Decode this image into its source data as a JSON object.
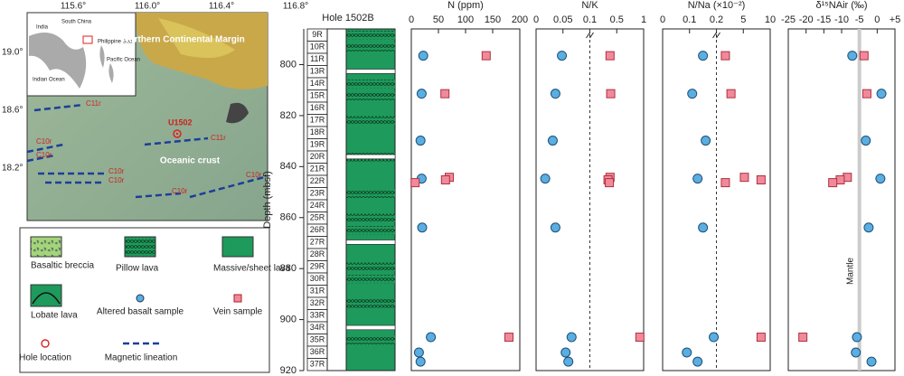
{
  "map": {
    "lon_ticks": [
      "115.6°",
      "116.0°",
      "116.4°",
      "116.8°"
    ],
    "lat_ticks": [
      "19.0°",
      "18.6°",
      "18.2°"
    ],
    "margin_label": "Northern Continental Margin",
    "crust_label": "Oceanic crust",
    "site": "U1502",
    "lineations": [
      "C11r",
      "C11r",
      "C10r",
      "C10r",
      "C10r",
      "C10r",
      "C10r",
      "C10r"
    ],
    "inset_labels": [
      "India",
      "South China",
      "Philippine Sea",
      "Pacific Ocean",
      "Indian Ocean"
    ]
  },
  "legend": [
    "Basaltic breccia",
    "Pillow lava",
    "Massive/sheet lava",
    "Lobate lava",
    "Hole location",
    "Magnetic lineation"
  ],
  "core_log": {
    "title": "Hole 1502B",
    "cores": [
      "9R",
      "10R",
      "11R",
      "13R",
      "14R",
      "15R",
      "16R",
      "17R",
      "18R",
      "19R",
      "20R",
      "21R",
      "22R",
      "23R",
      "24R",
      "25R",
      "26R",
      "27R",
      "28R",
      "29R",
      "30R",
      "31R",
      "32R",
      "33R",
      "34R",
      "35R",
      "36R",
      "37R"
    ]
  },
  "depth_axis": {
    "title": "Depth (mbsf)",
    "lim": [
      786,
      920
    ],
    "ticks": [
      800,
      820,
      840,
      860,
      880,
      900,
      920
    ]
  },
  "chart_data": [
    {
      "type": "scatter",
      "title": "N (ppm)",
      "xlim": [
        0,
        200
      ],
      "xticks": [
        0,
        50,
        100,
        150,
        200
      ],
      "series": [
        {
          "name": "Altered basalt sample",
          "color": "#5aaee0",
          "marker": "circle",
          "depth": [
            796.5,
            811.4,
            829.8,
            844.7,
            863.9,
            906.9,
            912.9,
            916.5
          ],
          "values": [
            22,
            19,
            17,
            19,
            20,
            36,
            14,
            17
          ]
        },
        {
          "name": "Vein sample",
          "color": "#f08a9a",
          "marker": "square",
          "depth": [
            796.5,
            811.4,
            844.2,
            845.2,
            846.3,
            906.9
          ],
          "values": [
            138,
            62,
            70,
            63,
            7,
            180
          ]
        }
      ]
    },
    {
      "type": "scatter",
      "title": "N/K",
      "xlim": [
        0,
        1
      ],
      "xticks": [
        0,
        0.05,
        0.1,
        0.5,
        1
      ],
      "axis_break": 0.1,
      "series": [
        {
          "name": "Altered basalt sample",
          "color": "#5aaee0",
          "marker": "circle",
          "depth": [
            796.5,
            811.4,
            829.8,
            844.7,
            863.9,
            906.9,
            912.9,
            916.5
          ],
          "values": [
            0.048,
            0.036,
            0.031,
            0.017,
            0.036,
            0.066,
            0.055,
            0.06
          ]
        },
        {
          "name": "Vein sample",
          "color": "#f08a9a",
          "marker": "square",
          "depth": [
            796.5,
            811.4,
            844.2,
            845.2,
            846.3,
            906.9
          ],
          "values": [
            0.4,
            0.41,
            0.4,
            0.37,
            0.39,
            0.93
          ]
        }
      ]
    },
    {
      "type": "scatter",
      "title": "N/Na (×10⁻²)",
      "xlim": [
        0,
        10
      ],
      "xticks": [
        0,
        0.1,
        0.2,
        5,
        10
      ],
      "axis_break": 0.2,
      "series": [
        {
          "name": "Altered basalt sample",
          "color": "#5aaee0",
          "marker": "circle",
          "depth": [
            796.5,
            811.4,
            829.8,
            844.7,
            863.9,
            906.9,
            912.9,
            916.5
          ],
          "values": [
            0.15,
            0.11,
            0.16,
            0.13,
            0.15,
            0.19,
            0.09,
            0.13
          ]
        },
        {
          "name": "Vein sample",
          "color": "#f08a9a",
          "marker": "square",
          "depth": [
            796.5,
            811.4,
            844.2,
            845.2,
            846.3,
            906.9
          ],
          "values": [
            1.8,
            2.8,
            5.2,
            8.3,
            1.8,
            8.3
          ]
        }
      ]
    },
    {
      "type": "scatter",
      "title": "δ¹⁵NAir (‰)",
      "xlim": [
        -25,
        5
      ],
      "xticks": [
        -25,
        -20,
        -15,
        -10,
        -5,
        0,
        {
          "value": 5,
          "label": "+5"
        }
      ],
      "reference_line": {
        "value": -5,
        "label": "Mantle"
      },
      "series": [
        {
          "name": "Altered basalt sample",
          "color": "#5aaee0",
          "marker": "circle",
          "depth": [
            796.5,
            811.4,
            829.8,
            844.7,
            863.9,
            906.9,
            912.9,
            916.5
          ],
          "values": [
            -7,
            1.2,
            -3.2,
            0.9,
            -2.4,
            -5.7,
            -6,
            -1.6
          ]
        },
        {
          "name": "Vein sample",
          "color": "#f08a9a",
          "marker": "square",
          "depth": [
            796.5,
            811.4,
            844.2,
            845.2,
            846.3,
            906.9
          ],
          "values": [
            -3.7,
            -2.9,
            -8.4,
            -10.4,
            -12.5,
            -20.9
          ]
        }
      ]
    }
  ]
}
